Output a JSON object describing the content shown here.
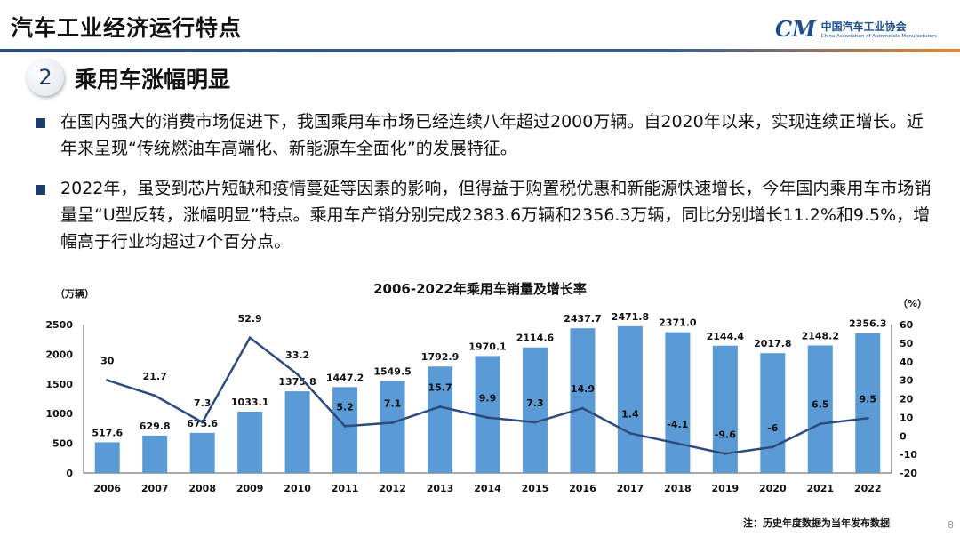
{
  "header": {
    "title": "汽车工业经济运行特点",
    "logo_cn": "中国汽车工业协会",
    "logo_en": "China Association of Automobile Manufacturers",
    "logo_mark": "CAM"
  },
  "section": {
    "number": "2",
    "title": "乘用车涨幅明显"
  },
  "bullets": [
    "在国内强大的消费市场促进下，我国乘用车市场已经连续八年超过2000万辆。自2020年以来，实现连续正增长。近年来呈现“传统燃油车高端化、新能源车全面化”的发展特征。",
    "2022年，虽受到芯片短缺和疫情蔓延等因素的影响，但得益于购置税优惠和新能源快速增长，今年国内乘用车市场销量呈“U型反转，涨幅明显”特点。乘用车产销分别完成2383.6万辆和2356.3万辆，同比分别增长11.2%和9.5%，增幅高于行业均超过7个百分点。"
  ],
  "note": "注：历史年度数据为当年发布数据",
  "page_number": "8",
  "chart_data": {
    "type": "bar+line",
    "title": "2006-2022年乘用车销量及增长率",
    "ylabel": "（万辆）",
    "y2label": "（%）",
    "categories": [
      "2006",
      "2007",
      "2008",
      "2009",
      "2010",
      "2011",
      "2012",
      "2013",
      "2014",
      "2015",
      "2016",
      "2017",
      "2018",
      "2019",
      "2020",
      "2021",
      "2022"
    ],
    "series": [
      {
        "type": "bar",
        "values": [
          517.6,
          629.8,
          675.6,
          1033.1,
          1375.8,
          1447.2,
          1549.5,
          1792.9,
          1970.1,
          2114.6,
          2437.7,
          2471.8,
          2371.0,
          2144.4,
          2017.8,
          2148.2,
          2356.3
        ],
        "labels": [
          "517.6",
          "629.8",
          "675.6",
          "1033.1",
          "1375.8",
          "1447.2",
          "1549.5",
          "1792.9",
          "1970.1",
          "2114.6",
          "2437.7",
          "2471.8",
          "2371.0",
          "2144.4",
          "2017.8",
          "2148.2",
          "2356.3"
        ],
        "color": "#5b9bd5"
      },
      {
        "type": "line",
        "values": [
          30,
          21.7,
          7.3,
          52.9,
          33.2,
          5.2,
          7.1,
          15.7,
          9.9,
          7.3,
          14.9,
          1.4,
          -4.1,
          -9.6,
          -6,
          6.5,
          9.5
        ],
        "labels": [
          "30",
          "21.7",
          "7.3",
          "52.9",
          "33.2",
          "5.2",
          "7.1",
          "15.7",
          "9.9",
          "7.3",
          "14.9",
          "1.4",
          "-4.1",
          "-9.6",
          "-6",
          "6.5",
          "9.5"
        ],
        "color": "#2f4b7c"
      }
    ],
    "ylim": [
      0,
      2500
    ],
    "yticks": [
      "0",
      "500",
      "1000",
      "1500",
      "2000",
      "2500"
    ],
    "y2lim": [
      -20,
      60
    ],
    "y2ticks": [
      "-20",
      "-10",
      "0",
      "10",
      "20",
      "30",
      "40",
      "50",
      "60"
    ],
    "grid": false
  }
}
